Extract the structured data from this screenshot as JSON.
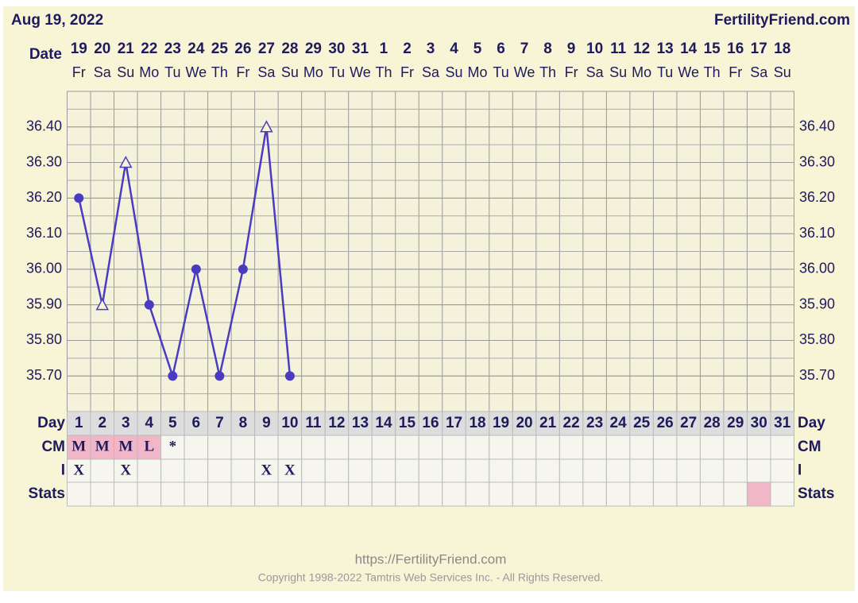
{
  "header": {
    "date_label": "Aug 19, 2022",
    "site": "FertilityFriend.com",
    "date_row_label": "Date"
  },
  "chart_data": {
    "type": "line",
    "categories": [
      "1",
      "2",
      "3",
      "4",
      "5",
      "6",
      "7",
      "8",
      "9",
      "10",
      "11",
      "12",
      "13",
      "14",
      "15",
      "16",
      "17",
      "18",
      "19",
      "20",
      "21",
      "22",
      "23",
      "24",
      "25",
      "26",
      "27",
      "28",
      "29",
      "30",
      "31"
    ],
    "dates": [
      "19",
      "20",
      "21",
      "22",
      "23",
      "24",
      "25",
      "26",
      "27",
      "28",
      "29",
      "30",
      "31",
      "1",
      "2",
      "3",
      "4",
      "5",
      "6",
      "7",
      "8",
      "9",
      "10",
      "11",
      "12",
      "13",
      "14",
      "15",
      "16",
      "17",
      "18"
    ],
    "weekdays": [
      "Fr",
      "Sa",
      "Su",
      "Mo",
      "Tu",
      "We",
      "Th",
      "Fr",
      "Sa",
      "Su",
      "Mo",
      "Tu",
      "We",
      "Th",
      "Fr",
      "Sa",
      "Su",
      "Mo",
      "Tu",
      "We",
      "Th",
      "Fr",
      "Sa",
      "Su",
      "Mo",
      "Tu",
      "We",
      "Th",
      "Fr",
      "Sa",
      "Su"
    ],
    "series": [
      {
        "color": "#4a3cc0",
        "values": [
          36.2,
          35.9,
          36.3,
          35.9,
          35.7,
          36.0,
          35.7,
          36.0,
          36.4,
          35.7,
          null,
          null,
          null,
          null,
          null,
          null,
          null,
          null,
          null,
          null,
          null,
          null,
          null,
          null,
          null,
          null,
          null,
          null,
          null,
          null,
          null
        ],
        "markers": [
          "circle",
          "triangle",
          "triangle",
          "circle",
          "circle",
          "circle",
          "circle",
          "circle",
          "triangle",
          "circle",
          null,
          null,
          null,
          null,
          null,
          null,
          null,
          null,
          null,
          null,
          null,
          null,
          null,
          null,
          null,
          null,
          null,
          null,
          null,
          null,
          null
        ]
      }
    ],
    "ylim": [
      35.6,
      36.5
    ],
    "yticks": [
      {
        "value": 35.7,
        "label": "35.70"
      },
      {
        "value": 35.8,
        "label": "35.80"
      },
      {
        "value": 35.9,
        "label": "35.90"
      },
      {
        "value": 36.0,
        "label": "36.00"
      },
      {
        "value": 36.1,
        "label": "36.10"
      },
      {
        "value": 36.2,
        "label": "36.20"
      },
      {
        "value": 36.3,
        "label": "36.30"
      },
      {
        "value": 36.4,
        "label": "36.40"
      }
    ],
    "grid": true,
    "rows": {
      "day_label": "Day",
      "cm_label": "CM",
      "i_label": "I",
      "stats_label": "Stats",
      "cm": [
        "M",
        "M",
        "M",
        "L",
        "*",
        null,
        null,
        null,
        null,
        null,
        null,
        null,
        null,
        null,
        null,
        null,
        null,
        null,
        null,
        null,
        null,
        null,
        null,
        null,
        null,
        null,
        null,
        null,
        null,
        null,
        null
      ],
      "cm_color": "#f2b6c9",
      "i": [
        "X",
        null,
        "X",
        null,
        null,
        null,
        null,
        null,
        "X",
        "X",
        null,
        null,
        null,
        null,
        null,
        null,
        null,
        null,
        null,
        null,
        null,
        null,
        null,
        null,
        null,
        null,
        null,
        null,
        null,
        null,
        null
      ]
    }
  },
  "footer": {
    "url": "https://FertilityFriend.com",
    "copyright": "Copyright 1998-2022 Tamtris Web Services Inc. - All Rights Reserved."
  }
}
